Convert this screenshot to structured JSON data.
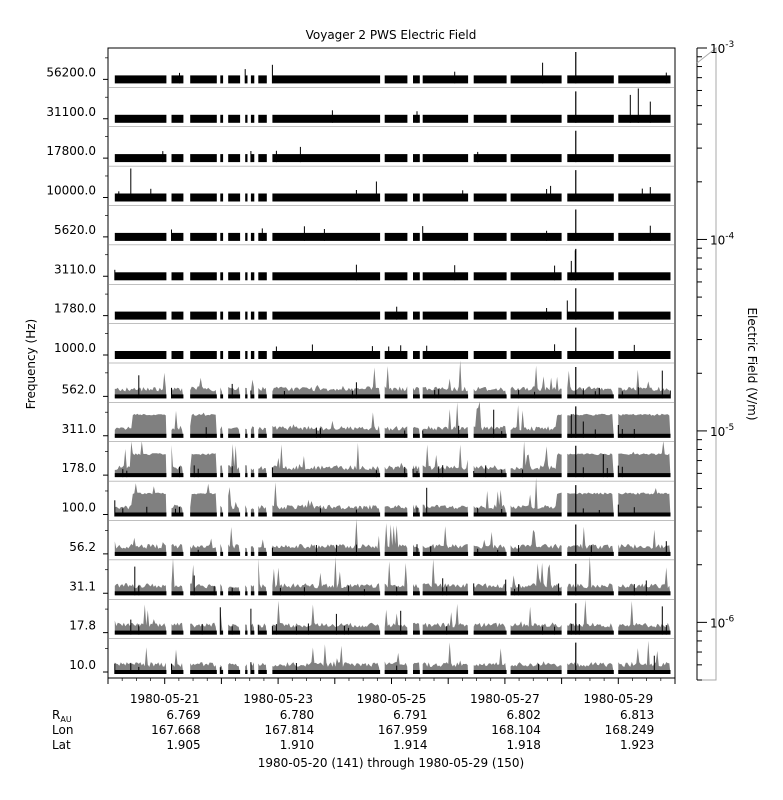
{
  "chart_data": {
    "type": "line",
    "title": "Voyager 2 PWS Electric Field",
    "ylabel": "Frequency (Hz)",
    "colorbar_label": "Electric Field (V/m)",
    "colorbar_ticks": [
      {
        "base": "10",
        "exp": "-3"
      },
      {
        "base": "10",
        "exp": "-4"
      },
      {
        "base": "10",
        "exp": "-5"
      },
      {
        "base": "10",
        "exp": "-6"
      }
    ],
    "colorbar_range": [
      5e-07,
      0.001
    ],
    "channels": [
      "56200.0",
      "31100.0",
      "17800.0",
      "10000.0",
      "5620.0",
      "3110.0",
      "1780.0",
      "1000.0",
      "562.0",
      "311.0",
      "178.0",
      "100.0",
      "56.2",
      "31.1",
      "17.8",
      "10.0"
    ],
    "x_range_days": [
      "1980-05-20",
      "1980-05-30"
    ],
    "date_ticks": [
      "1980-05-21",
      "1980-05-23",
      "1980-05-25",
      "1980-05-27",
      "1980-05-29"
    ],
    "ephemeris": {
      "labels": [
        {
          "base": "R",
          "sub": "AU"
        },
        {
          "base": "Lon"
        },
        {
          "base": "Lat"
        }
      ],
      "rows": [
        [
          "6.769",
          "6.780",
          "6.791",
          "6.802",
          "6.813"
        ],
        [
          "167.668",
          "167.814",
          "167.959",
          "168.104",
          "168.249"
        ],
        [
          "1.905",
          "1.910",
          "1.914",
          "1.918",
          "1.923"
        ]
      ]
    },
    "xlabel": "1980-05-20 (141) through 1980-05-29 (150)",
    "series_colors": {
      "peak": "#808080",
      "average": "#000000"
    },
    "data_segments_day": [
      [
        0.12,
        1.03
      ],
      [
        1.12,
        1.33
      ],
      [
        1.45,
        1.92
      ],
      [
        1.98,
        2.03
      ],
      [
        2.12,
        2.33
      ],
      [
        2.42,
        2.46
      ],
      [
        2.52,
        2.58
      ],
      [
        2.65,
        2.8
      ],
      [
        2.9,
        4.8
      ],
      [
        4.88,
        5.28
      ],
      [
        5.38,
        5.5
      ],
      [
        5.55,
        6.35
      ],
      [
        6.45,
        7.03
      ],
      [
        7.1,
        8.0
      ],
      [
        8.1,
        8.92
      ],
      [
        9.0,
        9.92
      ]
    ]
  }
}
